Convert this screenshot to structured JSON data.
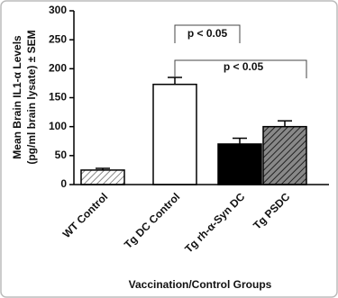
{
  "chart_data": {
    "type": "bar",
    "y_label_lines": [
      "Mean Brain IL1-α Levels",
      "(pg/ml brain lysate) ± SEM"
    ],
    "x_label": "Vaccination/Control Groups",
    "categories": [
      "WT Control",
      "Tg DC Control",
      "Tg rh-α-Syn DC",
      "Tg PSDC"
    ],
    "values": [
      25,
      173,
      70,
      100
    ],
    "errors": [
      3,
      12,
      10,
      10
    ],
    "colors": [
      "#ffffff",
      "#ffffff",
      "#000000",
      "#505050"
    ],
    "hatch": [
      true,
      false,
      false,
      true
    ],
    "ylim": [
      0,
      300
    ],
    "yticks": [
      0,
      50,
      100,
      150,
      200,
      250,
      300
    ],
    "annotations": [
      "p < 0.05",
      "p < 0.05"
    ]
  }
}
